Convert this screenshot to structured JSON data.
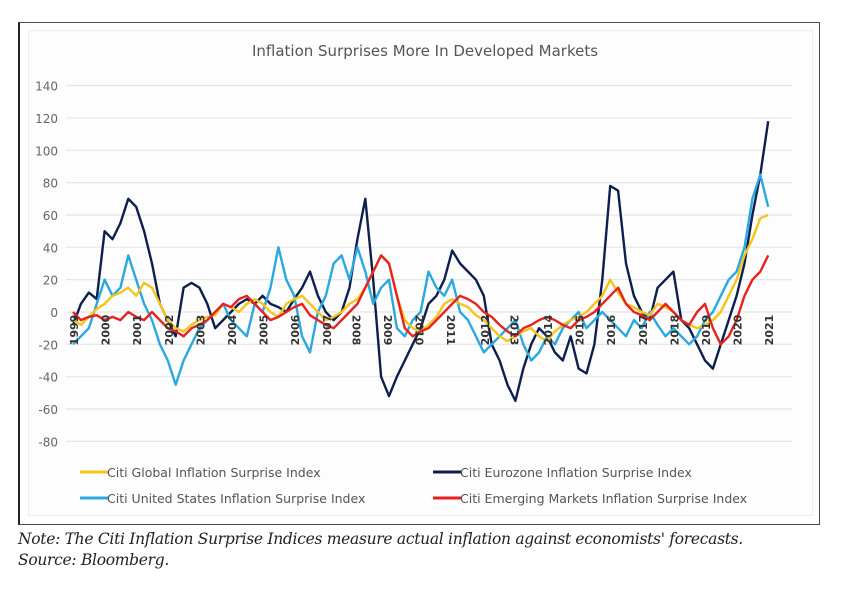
{
  "chart_data": {
    "type": "line",
    "title": "Inflation Surprises More In Developed Markets",
    "xlabel": "",
    "ylabel": "",
    "ylim": [
      -80,
      140
    ],
    "yticks": [
      140,
      120,
      100,
      80,
      60,
      40,
      20,
      0,
      -20,
      -40,
      -60,
      -80
    ],
    "xlim": [
      1999,
      2021.9
    ],
    "xticks": [
      "1999",
      "2000",
      "2001",
      "2002",
      "2003",
      "2004",
      "2005",
      "2006",
      "2007",
      "2008",
      "2009",
      "2010",
      "2011",
      "2012",
      "2013",
      "2014",
      "2015",
      "2016",
      "2017",
      "2018",
      "2019",
      "2020",
      "2021"
    ],
    "grid": true,
    "legend": "bottom",
    "x_step": 0.25,
    "x_start": 1999.0,
    "series": [
      {
        "name": "Citi Global Inflation Surprise Index",
        "color": "#f5c518",
        "values": [
          -5,
          -8,
          -3,
          2,
          5,
          10,
          12,
          15,
          10,
          18,
          15,
          5,
          -5,
          -10,
          -12,
          -8,
          -5,
          -3,
          -2,
          5,
          3,
          0,
          5,
          8,
          5,
          0,
          -3,
          5,
          8,
          10,
          5,
          0,
          -5,
          -3,
          0,
          5,
          8,
          15,
          25,
          35,
          30,
          10,
          -5,
          -10,
          -12,
          -8,
          -3,
          5,
          8,
          5,
          3,
          -2,
          -5,
          -10,
          -15,
          -18,
          -15,
          -12,
          -10,
          -15,
          -18,
          -12,
          -8,
          -5,
          -3,
          0,
          5,
          10,
          20,
          12,
          5,
          3,
          0,
          -2,
          5,
          3,
          0,
          -5,
          -8,
          -10,
          -8,
          -5,
          0,
          10,
          20,
          35,
          45,
          58,
          60
        ]
      },
      {
        "name": "Citi Eurozone Inflation Surprise Index",
        "color": "#0d1f4f",
        "values": [
          -8,
          5,
          12,
          8,
          50,
          45,
          55,
          70,
          65,
          50,
          30,
          5,
          -5,
          -15,
          15,
          18,
          15,
          5,
          -10,
          -5,
          0,
          5,
          8,
          5,
          10,
          5,
          3,
          0,
          8,
          15,
          25,
          10,
          0,
          -5,
          0,
          15,
          45,
          70,
          20,
          -40,
          -52,
          -40,
          -30,
          -20,
          -10,
          5,
          10,
          20,
          38,
          30,
          25,
          20,
          10,
          -20,
          -30,
          -45,
          -55,
          -35,
          -20,
          -10,
          -15,
          -25,
          -30,
          -15,
          -35,
          -38,
          -20,
          20,
          78,
          75,
          30,
          10,
          0,
          -5,
          15,
          20,
          25,
          -5,
          -10,
          -20,
          -30,
          -35,
          -20,
          -5,
          10,
          30,
          60,
          85,
          118
        ]
      },
      {
        "name": "Citi United States Inflation Surprise Index",
        "color": "#2aa8e0",
        "values": [
          -20,
          -15,
          -10,
          5,
          20,
          10,
          15,
          35,
          20,
          5,
          -5,
          -20,
          -30,
          -45,
          -30,
          -20,
          -10,
          -5,
          0,
          5,
          -5,
          -10,
          -15,
          5,
          0,
          15,
          40,
          20,
          10,
          -15,
          -25,
          0,
          10,
          30,
          35,
          20,
          40,
          25,
          5,
          15,
          20,
          -10,
          -15,
          -5,
          0,
          25,
          15,
          10,
          20,
          0,
          -5,
          -15,
          -25,
          -20,
          -15,
          -10,
          -5,
          -20,
          -30,
          -25,
          -15,
          -20,
          -10,
          -5,
          0,
          -10,
          -5,
          0,
          -5,
          -10,
          -15,
          -5,
          -10,
          0,
          -8,
          -15,
          -10,
          -15,
          -20,
          -15,
          -5,
          0,
          10,
          20,
          25,
          40,
          70,
          85,
          65
        ]
      },
      {
        "name": "Citi Emerging Markets Inflation Surprise Index",
        "color": "#e8231f",
        "values": [
          0,
          -5,
          -3,
          -2,
          -5,
          -3,
          -5,
          0,
          -3,
          -5,
          0,
          -5,
          -10,
          -12,
          -15,
          -10,
          -8,
          -5,
          0,
          5,
          3,
          8,
          10,
          5,
          0,
          -5,
          -3,
          0,
          3,
          5,
          -2,
          -5,
          -8,
          -10,
          -5,
          0,
          5,
          15,
          25,
          35,
          30,
          10,
          -10,
          -15,
          -12,
          -10,
          -5,
          0,
          5,
          10,
          8,
          5,
          0,
          -3,
          -8,
          -12,
          -15,
          -10,
          -8,
          -5,
          -3,
          -5,
          -8,
          -10,
          -5,
          -3,
          0,
          5,
          10,
          15,
          5,
          0,
          -2,
          -5,
          0,
          5,
          0,
          -5,
          -8,
          0,
          5,
          -10,
          -20,
          -15,
          -5,
          10,
          20,
          25,
          35
        ]
      }
    ]
  },
  "note": {
    "line1": "Note: The Citi Inflation Surprise Indices measure actual inflation against economists' forecasts.",
    "line2": "Source: Bloomberg."
  }
}
